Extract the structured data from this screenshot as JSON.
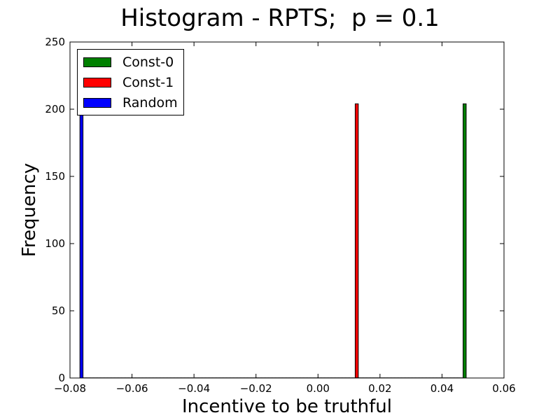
{
  "chart_data": {
    "type": "bar",
    "title": "Histogram - RPTS;  p = 0.1",
    "xlabel": "Incentive to be truthful",
    "ylabel": "Frequency",
    "xlim": [
      -0.08,
      0.06
    ],
    "ylim": [
      0,
      250
    ],
    "xticks": [
      "−0.08",
      "−0.06",
      "−0.04",
      "−0.02",
      "0.00",
      "0.02",
      "0.04",
      "0.06"
    ],
    "xtick_values": [
      -0.08,
      -0.06,
      -0.04,
      -0.02,
      0.0,
      0.02,
      0.04,
      0.06
    ],
    "yticks": [
      "0",
      "50",
      "100",
      "150",
      "200",
      "250"
    ],
    "ytick_values": [
      0,
      50,
      100,
      150,
      200,
      250
    ],
    "grid": false,
    "legend_position": "top-left",
    "series": [
      {
        "name": "Const-0",
        "color": "#008000",
        "bins": [
          [
            0.0468,
            0.0478,
            204
          ]
        ]
      },
      {
        "name": "Const-1",
        "color": "#ff0000",
        "bins": [
          [
            0.012,
            0.013,
            204
          ]
        ]
      },
      {
        "name": "Random",
        "color": "#0000ff",
        "bins": [
          [
            -0.0768,
            -0.0758,
            204
          ]
        ]
      }
    ]
  }
}
